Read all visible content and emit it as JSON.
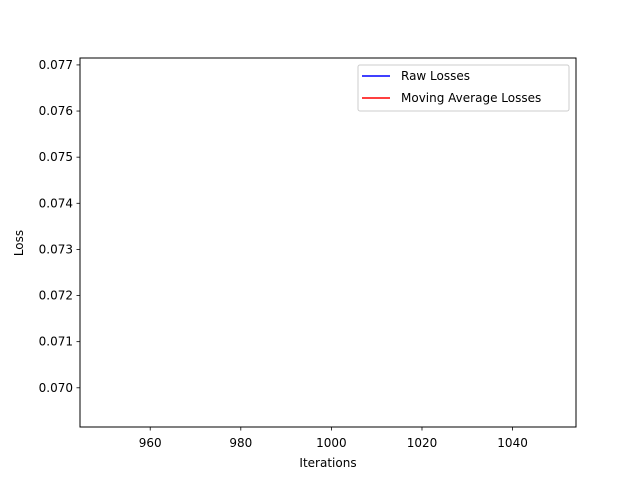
{
  "chart_data": {
    "type": "line",
    "title": "",
    "xlabel": "Iterations",
    "ylabel": "Loss",
    "xlim": [
      944.5,
      1054
    ],
    "ylim": [
      0.06915,
      0.07715
    ],
    "x_ticks": [
      960,
      980,
      1000,
      1020,
      1040
    ],
    "x_tick_labels": [
      "960",
      "980",
      "1000",
      "1020",
      "1040"
    ],
    "y_ticks": [
      0.07,
      0.071,
      0.072,
      0.073,
      0.074,
      0.075,
      0.076,
      0.077
    ],
    "y_tick_labels": [
      "0.070",
      "0.071",
      "0.072",
      "0.073",
      "0.074",
      "0.075",
      "0.076",
      "0.077"
    ],
    "grid": false,
    "legend_position": "top-right",
    "series": [
      {
        "name": "Raw Losses",
        "color": "#0000ff",
        "x": [],
        "y": []
      },
      {
        "name": "Moving Average Losses",
        "color": "#ff0000",
        "x": [],
        "y": []
      }
    ]
  }
}
